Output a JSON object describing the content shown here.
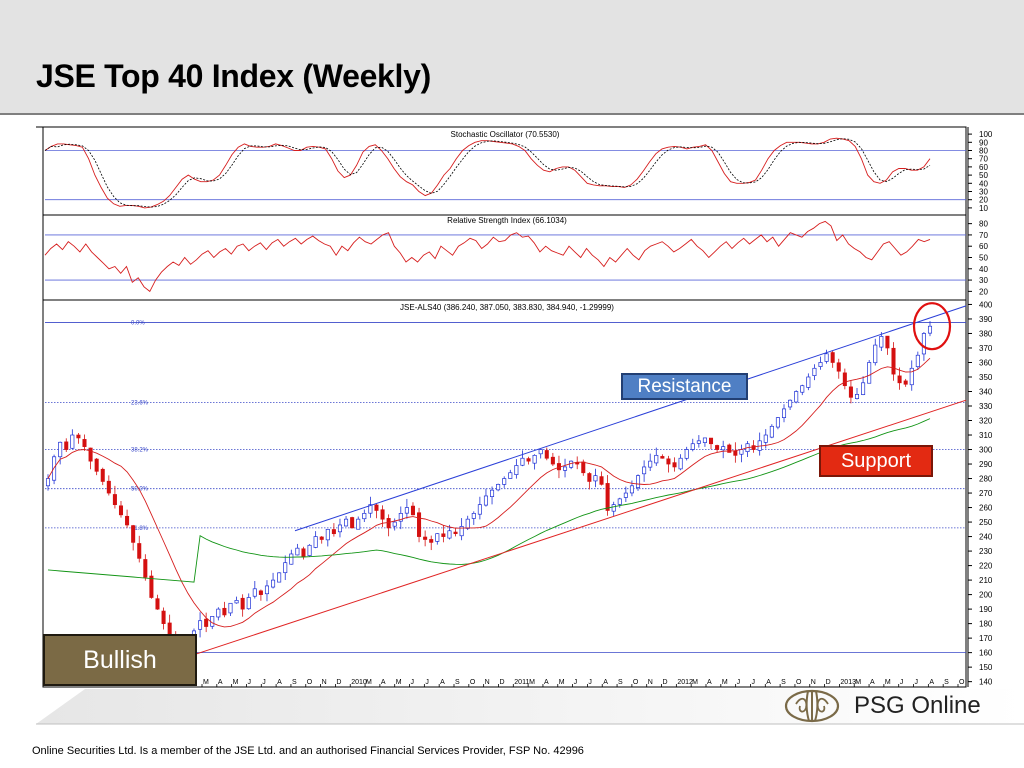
{
  "header": {
    "title": "JSE Top 40 Index (Weekly)"
  },
  "colors": {
    "price_up": "#1c2fd6",
    "price_down": "#d41010",
    "short_ma": "#d61e1e",
    "long_ma": "#129415",
    "trendline_upper": "#2a3fd8",
    "trendline_lower": "#e02424",
    "reference_line": "#5a66d8",
    "circle": "#e01010"
  },
  "chart_data": [
    {
      "type": "line",
      "title": "Stochastic Oscillator (70.5530)",
      "y_ticks": [
        "100",
        "90",
        "80",
        "70",
        "60",
        "50",
        "40",
        "30",
        "20",
        "10"
      ],
      "ylim": [
        5,
        105
      ],
      "reference_lines": [
        80,
        20
      ],
      "series_values_note_free": true,
      "pct_k": [
        80,
        85,
        88,
        88,
        87,
        86,
        84,
        70,
        50,
        35,
        22,
        15,
        12,
        13,
        13,
        12,
        10,
        11,
        14,
        18,
        25,
        35,
        45,
        50,
        45,
        42,
        42,
        44,
        50,
        62,
        75,
        84,
        88,
        85,
        84,
        84,
        85,
        88,
        86,
        83,
        80,
        80,
        84,
        85,
        84,
        82,
        70,
        55,
        47,
        50,
        62,
        78,
        85,
        87,
        80,
        70,
        58,
        48,
        42,
        38,
        30,
        25,
        28,
        38,
        50,
        58,
        70,
        80,
        86,
        90,
        92,
        92,
        91,
        90,
        89,
        88,
        85,
        80,
        70,
        62,
        56,
        54,
        58,
        60,
        60,
        56,
        48,
        40,
        38,
        37,
        37,
        36,
        36,
        35,
        38,
        45,
        55,
        66,
        76,
        82,
        84,
        85,
        84,
        82,
        84,
        85,
        87,
        80,
        66,
        52,
        42,
        40,
        40,
        41,
        44,
        56,
        70,
        80,
        86,
        90,
        90,
        90,
        89,
        88,
        88,
        90,
        94,
        95,
        94,
        92,
        85,
        70,
        50,
        42,
        40,
        44,
        54,
        58,
        58,
        56,
        56,
        60,
        70
      ]
    },
    {
      "type": "line",
      "title": "Relative Strength Index (66.1034)",
      "y_ticks": [
        "80",
        "70",
        "60",
        "50",
        "40",
        "30",
        "20"
      ],
      "ylim": [
        15,
        85
      ],
      "reference_lines": [
        70,
        30
      ],
      "values": [
        52,
        58,
        62,
        57,
        64,
        60,
        55,
        62,
        55,
        50,
        45,
        40,
        42,
        36,
        42,
        28,
        32,
        24,
        20,
        30,
        37,
        42,
        46,
        43,
        50,
        44,
        48,
        53,
        56,
        50,
        55,
        58,
        53,
        60,
        62,
        56,
        60,
        63,
        57,
        63,
        66,
        60,
        64,
        67,
        62,
        66,
        69,
        65,
        62,
        60,
        52,
        60,
        56,
        63,
        68,
        64,
        62,
        66,
        70,
        72,
        60,
        54,
        46,
        50,
        46,
        52,
        55,
        49,
        60,
        56,
        52,
        60,
        63,
        67,
        65,
        58,
        62,
        68,
        64,
        65,
        70,
        72,
        68,
        69,
        63,
        55,
        60,
        56,
        54,
        52,
        60,
        55,
        50,
        58,
        52,
        48,
        42,
        50,
        46,
        52,
        58,
        52,
        48,
        56,
        60,
        62,
        64,
        60,
        55,
        58,
        62,
        66,
        60,
        56,
        50,
        55,
        60,
        64,
        58,
        63,
        67,
        62,
        66,
        70,
        64,
        68,
        60,
        66,
        72,
        70,
        68,
        73,
        76,
        80,
        82,
        78,
        65,
        70,
        62,
        58,
        55,
        50,
        48,
        55,
        62,
        64,
        58,
        52,
        55,
        60,
        66,
        64,
        66
      ]
    },
    {
      "type": "candlestick",
      "title": "JSE-ALS40 (386.240, 387.050, 383.830, 384.940, -1.29999)",
      "y_ticks": [
        "400",
        "390",
        "380",
        "370",
        "360",
        "350",
        "340",
        "330",
        "320",
        "310",
        "300",
        "290",
        "280",
        "270",
        "260",
        "250",
        "240",
        "230",
        "220",
        "210",
        "200",
        "190",
        "180",
        "170",
        "160",
        "150",
        "140"
      ],
      "ylim": [
        137,
        401
      ],
      "x_ticks": [
        "M",
        "A",
        "M",
        "J",
        "J",
        "A",
        "S",
        "O",
        "N",
        "D",
        "2010",
        "M",
        "A",
        "M",
        "J",
        "J",
        "A",
        "S",
        "O",
        "N",
        "D",
        "2011",
        "M",
        "A",
        "M",
        "J",
        "J",
        "A",
        "S",
        "O",
        "N",
        "D",
        "2012",
        "M",
        "A",
        "M",
        "J",
        "J",
        "A",
        "S",
        "O",
        "N",
        "D",
        "2013",
        "M",
        "A",
        "M",
        "J",
        "J",
        "A",
        "S",
        "O"
      ],
      "fib_levels": [
        {
          "label": "0.0%",
          "value": 387.5
        },
        {
          "label": "23.6%",
          "value": 332.5
        },
        {
          "label": "38.2%",
          "value": 300
        },
        {
          "label": "50.0%",
          "value": 273
        },
        {
          "label": "61.8%",
          "value": 246
        }
      ],
      "horizontal_line": 160,
      "close": [
        280,
        295,
        305,
        300,
        310,
        308,
        302,
        292,
        285,
        278,
        270,
        262,
        255,
        248,
        236,
        225,
        212,
        198,
        190,
        180,
        172,
        165,
        162,
        168,
        175,
        182,
        178,
        185,
        190,
        186,
        194,
        196,
        190,
        198,
        204,
        200,
        206,
        210,
        215,
        222,
        228,
        232,
        226,
        234,
        240,
        238,
        245,
        242,
        248,
        252,
        246,
        252,
        256,
        262,
        258,
        252,
        246,
        250,
        256,
        260,
        255,
        240,
        238,
        236,
        242,
        240,
        244,
        242,
        247,
        252,
        256,
        262,
        268,
        272,
        276,
        280,
        284,
        289,
        294,
        292,
        296,
        300,
        294,
        290,
        286,
        288,
        292,
        290,
        284,
        278,
        282,
        276,
        258,
        262,
        266,
        270,
        275,
        282,
        288,
        292,
        296,
        294,
        290,
        288,
        294,
        300,
        304,
        306,
        308,
        304,
        300,
        302,
        298,
        296,
        300,
        304,
        300,
        306,
        310,
        316,
        322,
        328,
        334,
        340,
        344,
        350,
        356,
        360,
        366,
        360,
        354,
        344,
        336,
        338,
        346,
        360,
        372,
        378,
        370,
        352,
        346,
        345,
        356,
        365,
        380,
        385
      ]
    }
  ],
  "callouts": {
    "resistance": "Resistance",
    "support": "Support",
    "bullish": "Bullish"
  },
  "logo": {
    "text": "PSG Online",
    "icon": "psg-emblem-icon"
  },
  "footer": {
    "text": "Online Securities Ltd. Is a member of the JSE Ltd. and an authorised Financial Services Provider, FSP No. 42996"
  }
}
